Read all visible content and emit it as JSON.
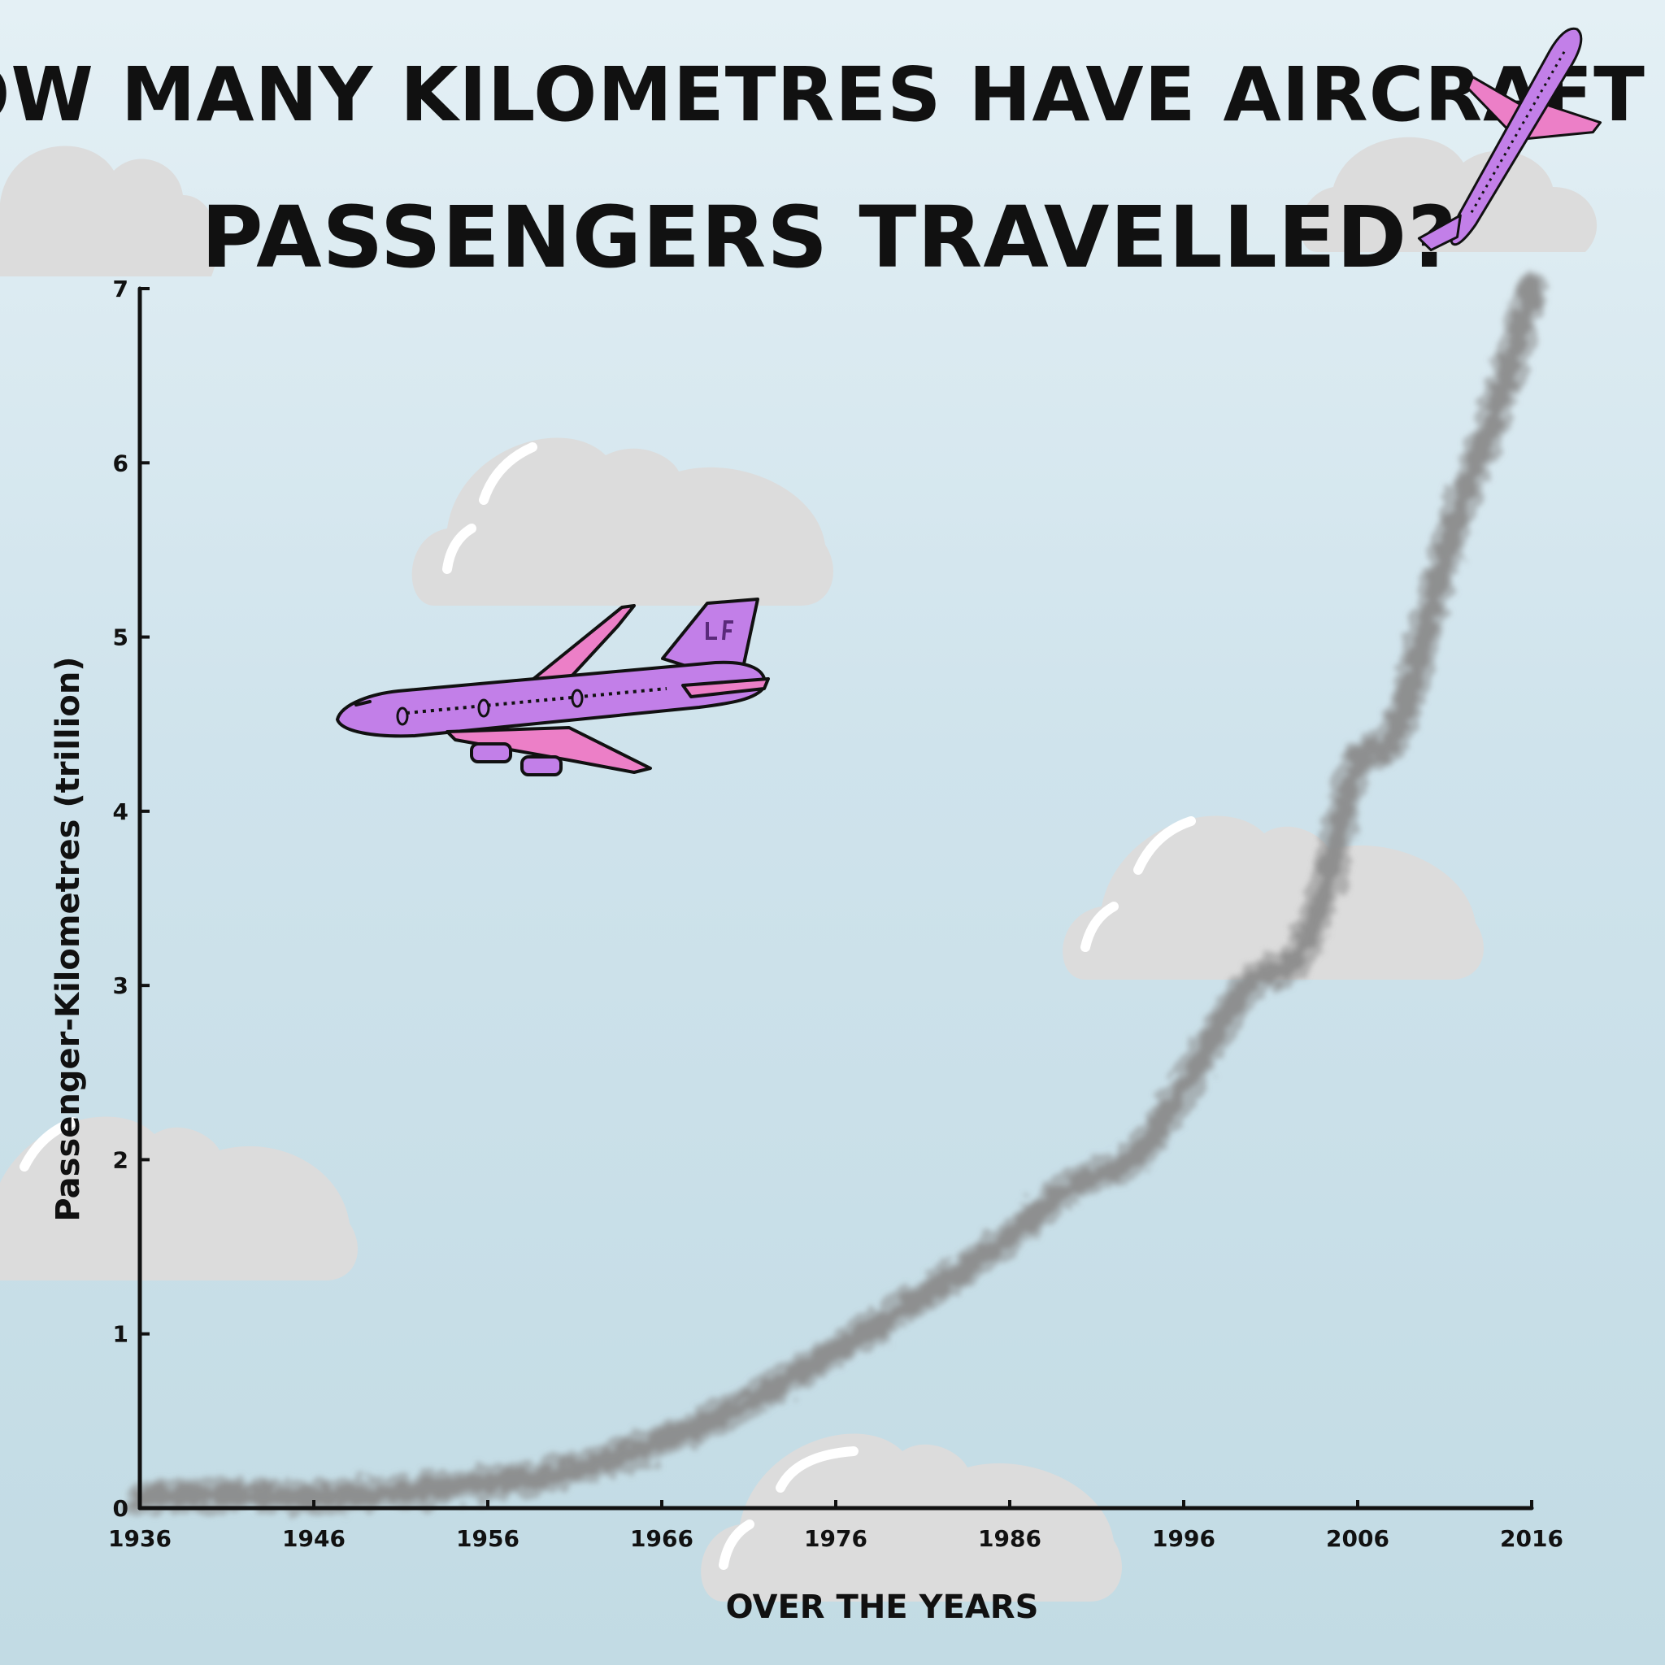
{
  "chart_data": {
    "type": "area",
    "title": "HOW MANY KILOMETRES HAVE AIRCRAFT PASSENGERS TRAVELLED?",
    "title_lines": [
      "HOW MANY KILOMETRES HAVE AIRCRAFT",
      "PASSENGERS TRAVELLED?"
    ],
    "xlabel": "OVER THE YEARS",
    "ylabel": "Passenger-Kilometres (trillion)",
    "x_ticks": [
      "1936",
      "1946",
      "1956",
      "1966",
      "1976",
      "1986",
      "1996",
      "2006",
      "2016"
    ],
    "y_ticks": [
      "0",
      "1",
      "2",
      "3",
      "4",
      "5",
      "6",
      "7"
    ],
    "xlim": [
      1936,
      2016
    ],
    "ylim": [
      0,
      7
    ],
    "grid": false,
    "legend": "none",
    "series": [
      {
        "x": [
          1936,
          1940,
          1946,
          1950,
          1956,
          1960,
          1966,
          1970,
          1976,
          1980,
          1986,
          1990,
          1993,
          1996,
          2000,
          2002,
          2004,
          2006,
          2008,
          2010,
          2012,
          2014,
          2016
        ],
        "values": [
          0.06,
          0.08,
          0.06,
          0.08,
          0.15,
          0.18,
          0.38,
          0.55,
          0.9,
          1.15,
          1.55,
          1.9,
          1.95,
          2.4,
          3.1,
          3.05,
          3.45,
          4.4,
          4.3,
          5.1,
          5.8,
          6.3,
          7.0
        ],
        "color": "#8a8a8a"
      }
    ]
  },
  "decorations": {
    "cloud_color": "#dcdcdc",
    "plane_body_color": "#c27fe8",
    "plane_wing_color": "#ec7fc7",
    "plane_tail_logo": "LF"
  }
}
